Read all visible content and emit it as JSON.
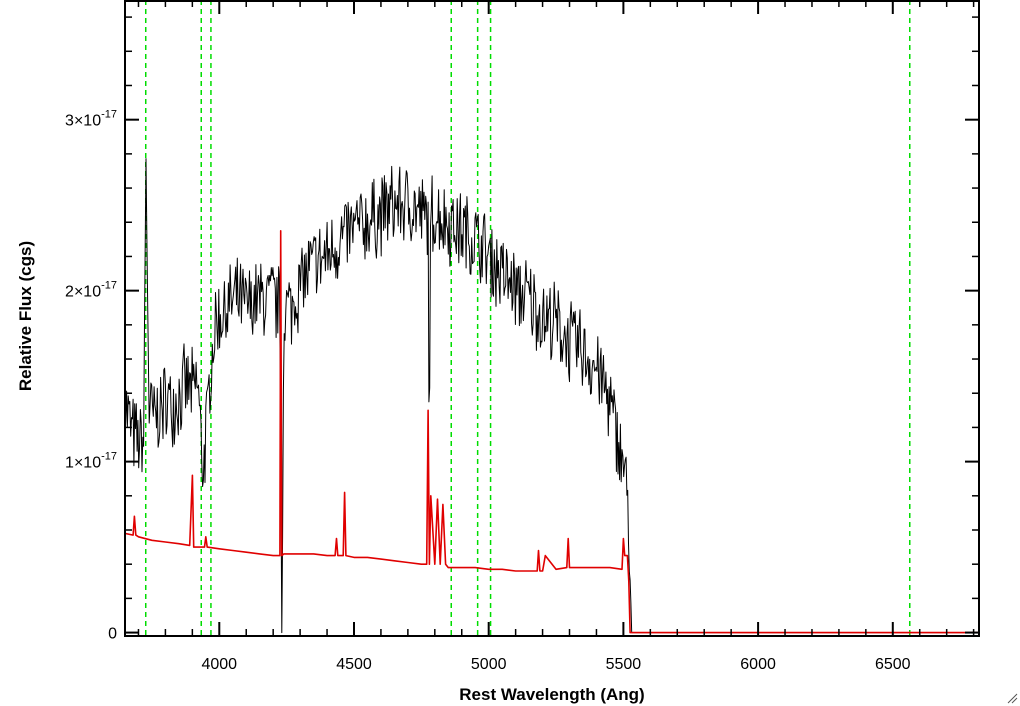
{
  "chart_data": {
    "type": "line",
    "title": "",
    "xlabel": "Rest Wavelength (Ang)",
    "ylabel": "Relative Flux (cgs)",
    "xlim": [
      3650,
      6820
    ],
    "ylim": [
      -2e-19,
      3.7e-17
    ],
    "x_ticks": [
      4000,
      4500,
      5000,
      5500,
      6000,
      6500
    ],
    "x_tick_labels": [
      "4000",
      "4500",
      "5000",
      "5500",
      "6000",
      "6500"
    ],
    "y_ticks": [
      {
        "value": 0,
        "mantissa": "0",
        "exponent": ""
      },
      {
        "value": 1e-17,
        "mantissa": "1×10",
        "exponent": "-17"
      },
      {
        "value": 2e-17,
        "mantissa": "2×10",
        "exponent": "-17"
      },
      {
        "value": 3e-17,
        "mantissa": "3×10",
        "exponent": "-17"
      }
    ],
    "grid": false,
    "colors": {
      "observed": "#000000",
      "model": "#e00000",
      "lines": "#00dd00"
    },
    "line_markers": [
      3727,
      3933,
      3969,
      4861,
      4959,
      5007,
      6563
    ],
    "series": [
      {
        "color": "#000000",
        "x": [
          3650,
          3665,
          3680,
          3700,
          3720,
          3727,
          3740,
          3760,
          3780,
          3800,
          3830,
          3860,
          3880,
          3900,
          3920,
          3940,
          3960,
          3980,
          4000,
          4030,
          4060,
          4100,
          4150,
          4200,
          4225,
          4232,
          4240,
          4270,
          4300,
          4350,
          4400,
          4450,
          4500,
          4550,
          4600,
          4650,
          4700,
          4750,
          4775,
          4780,
          4785,
          4800,
          4850,
          4900,
          4950,
          5000,
          5050,
          5100,
          5150,
          5200,
          5250,
          5300,
          5350,
          5400,
          5450,
          5480,
          5500,
          5520,
          5530,
          5540,
          6000,
          6820
        ],
        "y": [
          1.35e-17,
          1.25e-17,
          1.15e-17,
          1.1e-17,
          1.12e-17,
          2.8e-17,
          1.3e-17,
          1.25e-17,
          1.3e-17,
          1.35e-17,
          1.35e-17,
          1.4e-17,
          1.45e-17,
          1.4e-17,
          1.45e-17,
          9.5e-18,
          1.35e-17,
          1.75e-17,
          1.85e-17,
          1.9e-17,
          1.95e-17,
          1.9e-17,
          1.95e-17,
          1.95e-17,
          1.9e-17,
          0.0,
          1.9e-17,
          1.9e-17,
          2.05e-17,
          2.15e-17,
          2.2e-17,
          2.3e-17,
          2.35e-17,
          2.4e-17,
          2.45e-17,
          2.5e-17,
          2.5e-17,
          2.45e-17,
          2.4e-17,
          1e-17,
          2.45e-17,
          2.45e-17,
          2.4e-17,
          2.35e-17,
          2.3e-17,
          2.2e-17,
          2.1e-17,
          2e-17,
          1.95e-17,
          1.85e-17,
          1.8e-17,
          1.7e-17,
          1.65e-17,
          1.55e-17,
          1.35e-17,
          1.1e-17,
          1e-17,
          7e-18,
          0,
          0,
          0,
          0
        ]
      },
      {
        "color": "#e00000",
        "x": [
          3650,
          3680,
          3685,
          3690,
          3700,
          3750,
          3800,
          3850,
          3890,
          3900,
          3905,
          3920,
          3945,
          3950,
          3955,
          4000,
          4050,
          4100,
          4150,
          4200,
          4225,
          4228,
          4232,
          4240,
          4300,
          4350,
          4400,
          4430,
          4435,
          4440,
          4460,
          4465,
          4470,
          4500,
          4550,
          4600,
          4650,
          4700,
          4750,
          4770,
          4775,
          4780,
          4785,
          4800,
          4810,
          4820,
          4830,
          4840,
          4850,
          4900,
          4950,
          5000,
          5050,
          5100,
          5150,
          5180,
          5185,
          5190,
          5200,
          5210,
          5250,
          5290,
          5295,
          5300,
          5350,
          5400,
          5450,
          5495,
          5500,
          5505,
          5515,
          5520,
          5525,
          6000,
          6820
        ],
        "y": [
          5.8e-18,
          5.7e-18,
          6.8e-18,
          5.7e-18,
          5.6e-18,
          5.4e-18,
          5.3e-18,
          5.2e-18,
          5.1e-18,
          9.2e-18,
          5e-18,
          5e-18,
          5e-18,
          5.6e-18,
          5e-18,
          4.9e-18,
          4.8e-18,
          4.7e-18,
          4.6e-18,
          4.5e-18,
          4.5e-18,
          2.35e-17,
          4.5e-18,
          4.6e-18,
          4.6e-18,
          4.6e-18,
          4.5e-18,
          4.5e-18,
          5.5e-18,
          4.5e-18,
          4.5e-18,
          8.2e-18,
          4.5e-18,
          4.4e-18,
          4.4e-18,
          4.3e-18,
          4.2e-18,
          4.1e-18,
          4e-18,
          4e-18,
          1.3e-17,
          4e-18,
          8e-18,
          4e-18,
          7.8e-18,
          4e-18,
          7.5e-18,
          4e-18,
          3.8e-18,
          3.8e-18,
          3.8e-18,
          3.7e-18,
          3.7e-18,
          3.6e-18,
          3.6e-18,
          3.6e-18,
          4.8e-18,
          3.6e-18,
          3.6e-18,
          4.5e-18,
          3.7e-18,
          3.8e-18,
          5.5e-18,
          3.8e-18,
          3.8e-18,
          3.8e-18,
          3.8e-18,
          3.7e-18,
          5.5e-18,
          4.5e-18,
          4.5e-18,
          3e-18,
          0,
          0,
          0
        ]
      }
    ]
  }
}
